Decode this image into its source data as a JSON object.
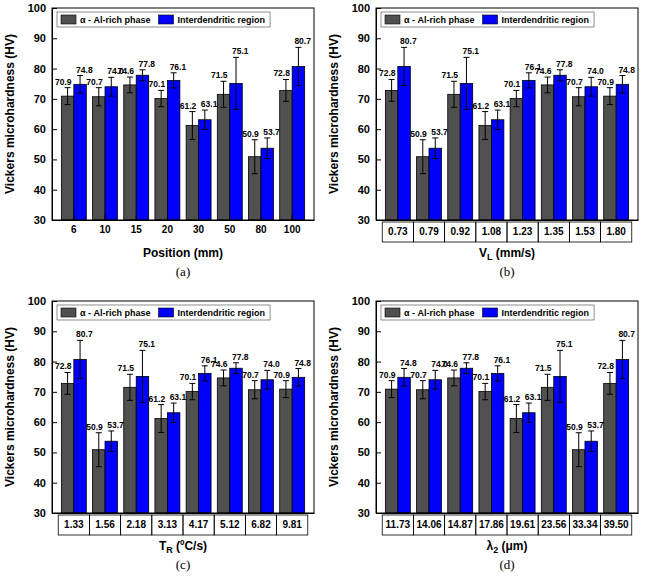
{
  "chart_data": [
    {
      "type": "bar",
      "label": "(a)",
      "x_label": [
        "Position (mm)"
      ],
      "y_label": "Vickers microhardness (HV)",
      "categories": [
        "6",
        "10",
        "15",
        "20",
        "30",
        "50",
        "80",
        "100"
      ],
      "series": [
        {
          "name": "α - Al-rich phase",
          "color": "#505050",
          "values": [
            70.9,
            70.7,
            74.6,
            70.1,
            61.2,
            71.5,
            50.9,
            72.8
          ],
          "value_labels": [
            "70.9",
            "70.7",
            "74.6",
            "70.1",
            "61.2",
            "71.5",
            "50.9",
            "72.8"
          ],
          "errors": [
            2.8,
            3.0,
            2.6,
            2.7,
            4.6,
            4.3,
            5.6,
            3.6
          ]
        },
        {
          "name": "Interdendritic region",
          "color": "#0000ff",
          "values": [
            74.8,
            74.0,
            77.8,
            76.1,
            63.1,
            75.1,
            53.7,
            80.7
          ],
          "value_labels": [
            "74.8",
            "74.0",
            "77.8",
            "76.1",
            "63.1",
            "75.1",
            "53.7",
            "80.7"
          ],
          "errors": [
            2.9,
            3.1,
            1.8,
            2.5,
            3.2,
            8.6,
            3.4,
            6.3
          ]
        }
      ],
      "ylim": [
        30,
        100
      ],
      "yticks": [
        30,
        40,
        50,
        60,
        70,
        80,
        90,
        100
      ],
      "legend": "upper left",
      "data_labels": true
    },
    {
      "type": "bar",
      "label": "(b)",
      "x_label": [
        "V",
        "L",
        " (mm/s)"
      ],
      "y_label": "Vickers microhardness (HV)",
      "categories": [
        "0.73",
        "0.79",
        "0.92",
        "1.08",
        "1.23",
        "1.35",
        "1.53",
        "1.80"
      ],
      "series": [
        {
          "name": "α - Al-rich phase",
          "color": "#505050",
          "values": [
            72.8,
            50.9,
            71.5,
            61.2,
            70.1,
            74.6,
            70.7,
            70.9
          ],
          "value_labels": [
            "72.8",
            "50.9",
            "71.5",
            "61.2",
            "70.1",
            "74.6",
            "70.7",
            "70.9"
          ],
          "errors": [
            3.6,
            5.6,
            4.3,
            4.6,
            2.7,
            2.6,
            3.0,
            2.8
          ]
        },
        {
          "name": "Interdendritic region",
          "color": "#0000ff",
          "values": [
            80.7,
            53.7,
            75.1,
            63.1,
            76.1,
            77.8,
            74.0,
            74.8
          ],
          "value_labels": [
            "80.7",
            "53.7",
            "75.1",
            "63.1",
            "76.1",
            "77.8",
            "74.0",
            "74.8"
          ],
          "errors": [
            6.3,
            3.4,
            8.6,
            3.2,
            2.5,
            1.8,
            3.1,
            2.9
          ]
        }
      ],
      "ylim": [
        30,
        100
      ],
      "yticks": [
        30,
        40,
        50,
        60,
        70,
        80,
        90,
        100
      ],
      "legend": "upper left",
      "data_labels": true
    },
    {
      "type": "bar",
      "label": "(c)",
      "x_label": [
        "T",
        "R",
        " (ºC/s)"
      ],
      "y_label": "Vickers microhardness (HV)",
      "categories": [
        "1.33",
        "1.56",
        "2.18",
        "3.13",
        "4.17",
        "5.12",
        "6.82",
        "9.81"
      ],
      "series": [
        {
          "name": "α - Al-rich phase",
          "color": "#505050",
          "values": [
            72.8,
            50.9,
            71.5,
            61.2,
            70.1,
            74.6,
            70.7,
            70.9
          ],
          "value_labels": [
            "72.8",
            "50.9",
            "71.5",
            "61.2",
            "70.1",
            "74.6",
            "70.7",
            "70.9"
          ],
          "errors": [
            3.6,
            5.6,
            4.3,
            4.6,
            2.7,
            2.6,
            3.0,
            2.8
          ]
        },
        {
          "name": "Interdendritic region",
          "color": "#0000ff",
          "values": [
            80.7,
            53.7,
            75.1,
            63.1,
            76.1,
            77.8,
            74.0,
            74.8
          ],
          "value_labels": [
            "80.7",
            "53.7",
            "75.1",
            "63.1",
            "76.1",
            "77.8",
            "74.0",
            "74.8"
          ],
          "errors": [
            6.3,
            3.4,
            8.6,
            3.2,
            2.5,
            1.8,
            3.1,
            2.9
          ]
        }
      ],
      "ylim": [
        30,
        100
      ],
      "yticks": [
        30,
        40,
        50,
        60,
        70,
        80,
        90,
        100
      ],
      "legend": "upper left",
      "data_labels": true
    },
    {
      "type": "bar",
      "label": "(d)",
      "x_label": [
        "λ",
        "2",
        " (μm)"
      ],
      "y_label": "Vickers microhardness (HV)",
      "categories": [
        "11.73",
        "14.06",
        "14.87",
        "17.86",
        "19.61",
        "23.56",
        "33.34",
        "39.50"
      ],
      "series": [
        {
          "name": "α - Al-rich phase",
          "color": "#505050",
          "values": [
            70.9,
            70.7,
            74.6,
            70.1,
            61.2,
            71.5,
            50.9,
            72.8
          ],
          "value_labels": [
            "70.9",
            "70.7",
            "74.6",
            "70.1",
            "61.2",
            "71.5",
            "50.9",
            "72.8"
          ],
          "errors": [
            2.8,
            3.0,
            2.6,
            2.7,
            4.6,
            4.3,
            5.6,
            3.6
          ]
        },
        {
          "name": "Interdendritic region",
          "color": "#0000ff",
          "values": [
            74.8,
            74.0,
            77.8,
            76.1,
            63.1,
            75.1,
            53.7,
            80.7
          ],
          "value_labels": [
            "74.8",
            "74.0",
            "77.8",
            "76.1",
            "63.1",
            "75.1",
            "53.7",
            "80.7"
          ],
          "errors": [
            2.9,
            3.1,
            1.8,
            2.5,
            3.2,
            8.6,
            3.4,
            6.3
          ]
        }
      ],
      "ylim": [
        30,
        100
      ],
      "yticks": [
        30,
        40,
        50,
        60,
        70,
        80,
        90,
        100
      ],
      "legend": "upper left",
      "data_labels": true
    }
  ]
}
